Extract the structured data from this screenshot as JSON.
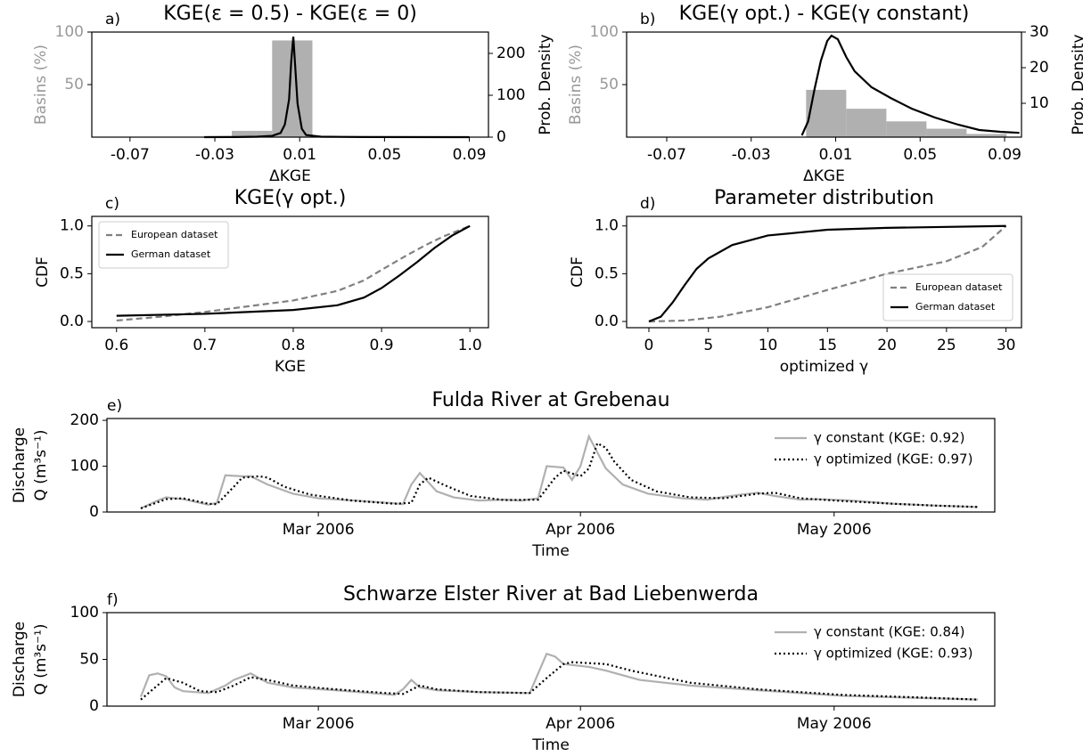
{
  "chart_data": [
    {
      "type": "histogram",
      "panel_label": "a)",
      "title": "KGE(ε = 0.5) - KGE(ε = 0)",
      "xlabel": "ΔKGE",
      "ylabel": "Basins (%)",
      "y2label": "Prob. Density",
      "bins": [
        -0.022,
        -0.003,
        0.016
      ],
      "values": [
        6,
        92
      ],
      "color": "#b0b0b0",
      "label_color": "#999999",
      "density_x": [
        -0.035,
        -0.02,
        -0.01,
        -0.003,
        0.001,
        0.003,
        0.005,
        0.006,
        0.007,
        0.008,
        0.009,
        0.011,
        0.013,
        0.02,
        0.04,
        0.09
      ],
      "density": [
        0,
        0.3,
        1,
        3,
        10,
        30,
        90,
        180,
        240,
        160,
        80,
        20,
        5,
        1,
        0.2,
        0
      ],
      "density_color": "#000000",
      "xlim": [
        -0.088,
        0.099
      ],
      "xticks": [
        -0.07,
        -0.03,
        0.01,
        0.05,
        0.09
      ],
      "ylim": [
        0,
        100
      ],
      "yticks": [
        50,
        100
      ],
      "y2lim": [
        0,
        251
      ],
      "y2ticks": [
        0,
        100,
        200
      ]
    },
    {
      "type": "histogram",
      "panel_label": "b)",
      "title": "KGE(γ opt.) - KGE(γ constant)",
      "xlabel": "ΔKGE",
      "ylabel": "Basins (%)",
      "y2label": "Prob. Density",
      "bins": [
        -0.004,
        0.015,
        0.034,
        0.053,
        0.072,
        0.091
      ],
      "values": [
        45,
        27,
        15,
        8,
        3
      ],
      "color": "#b0b0b0",
      "label_color": "#999999",
      "density_x": [
        -0.006,
        -0.003,
        0.0,
        0.003,
        0.006,
        0.008,
        0.011,
        0.015,
        0.019,
        0.027,
        0.036,
        0.046,
        0.057,
        0.068,
        0.078,
        0.088,
        0.097
      ],
      "density": [
        1,
        5,
        14,
        22,
        27.5,
        29,
        28,
        23,
        19,
        14.5,
        11.5,
        8.5,
        6,
        4,
        2.5,
        2,
        1.7
      ],
      "density_color": "#000000",
      "xlim": [
        -0.089,
        0.098
      ],
      "xticks": [
        -0.07,
        -0.03,
        0.01,
        0.05,
        0.09
      ],
      "ylim": [
        0,
        100
      ],
      "yticks": [
        50,
        100
      ],
      "y2lim": [
        0.5,
        30
      ],
      "y2ticks": [
        10,
        20,
        30
      ]
    },
    {
      "type": "line",
      "panel_label": "c)",
      "title": "KGE(γ opt.)",
      "xlabel": "KGE",
      "ylabel": [
        "CDF"
      ],
      "legend": "upper left",
      "legend_frame": true,
      "xlim": [
        0.572,
        1.021
      ],
      "xticks": [
        0.6,
        0.7,
        0.8,
        0.9,
        {
          "value": 1.0,
          "label": "1.0"
        }
      ],
      "ylim": [
        -0.065,
        1.1
      ],
      "yticks": [
        {
          "value": 0,
          "label": "0.0"
        },
        0.5,
        {
          "value": 1.0,
          "label": "1.0"
        }
      ],
      "series": [
        {
          "name": "European dataset",
          "color": "#808080",
          "linestyle": "dashed",
          "x": [
            0.6,
            0.65,
            0.7,
            0.75,
            0.8,
            0.85,
            0.88,
            0.9,
            0.93,
            0.95,
            0.97,
            1.0
          ],
          "values": [
            0.01,
            0.05,
            0.1,
            0.16,
            0.22,
            0.32,
            0.43,
            0.54,
            0.7,
            0.8,
            0.89,
            1.0
          ]
        },
        {
          "name": "German dataset",
          "color": "#000000",
          "linestyle": "solid",
          "x": [
            0.6,
            0.7,
            0.8,
            0.85,
            0.88,
            0.9,
            0.92,
            0.94,
            0.96,
            0.98,
            1.0
          ],
          "values": [
            0.06,
            0.08,
            0.12,
            0.17,
            0.25,
            0.35,
            0.48,
            0.62,
            0.77,
            0.9,
            1.0
          ]
        }
      ]
    },
    {
      "type": "line",
      "panel_label": "d)",
      "title": "Parameter distribution",
      "xlabel": "optimized γ",
      "ylabel": [
        "CDF"
      ],
      "legend": "lower right",
      "legend_frame": true,
      "xlim": [
        -1.87,
        31.3
      ],
      "xticks": [
        0,
        5,
        10,
        15,
        20,
        25,
        30
      ],
      "ylim": [
        -0.065,
        1.1
      ],
      "yticks": [
        {
          "value": 0,
          "label": "0.0"
        },
        0.5,
        {
          "value": 1.0,
          "label": "1.0"
        }
      ],
      "series": [
        {
          "name": "European dataset",
          "color": "#808080",
          "linestyle": "dashed",
          "x": [
            0,
            3,
            6,
            10,
            15,
            20,
            25,
            28,
            30
          ],
          "values": [
            0,
            0.01,
            0.05,
            0.15,
            0.33,
            0.5,
            0.63,
            0.78,
            1.0
          ]
        },
        {
          "name": "German dataset",
          "color": "#000000",
          "linestyle": "solid",
          "x": [
            0,
            1,
            2,
            3,
            4,
            5,
            7,
            10,
            15,
            20,
            30
          ],
          "values": [
            0,
            0.05,
            0.2,
            0.38,
            0.55,
            0.66,
            0.8,
            0.9,
            0.96,
            0.98,
            1.0
          ]
        }
      ]
    },
    {
      "type": "line",
      "panel_label": "e)",
      "title": "Fulda River at Grebenau",
      "xlabel": "Time",
      "ylabel": [
        "Discharge",
        "Q (m³s⁻¹)"
      ],
      "legend": "upper right",
      "legend_frame": false,
      "xlim": [
        3,
        108
      ],
      "xticks": [
        {
          "value": 28,
          "label": "Mar 2006"
        },
        {
          "value": 59,
          "label": "Apr 2006"
        },
        {
          "value": 89,
          "label": "May 2006"
        }
      ],
      "ylim": [
        0,
        204
      ],
      "yticks": [
        0,
        100,
        200
      ],
      "series": [
        {
          "name": "γ constant (KGE: 0.92)",
          "color": "#b0b0b0",
          "linestyle": "solid",
          "x": [
            7,
            9,
            10,
            12,
            15,
            16,
            17,
            19,
            20,
            22,
            25,
            28,
            33,
            37,
            38,
            39,
            40,
            41,
            42,
            44,
            47,
            50,
            52,
            54,
            55,
            57,
            58,
            59,
            60,
            62,
            64,
            67,
            71,
            74,
            76,
            78,
            80,
            82,
            85,
            87,
            91,
            96,
            101,
            106
          ],
          "values": [
            8,
            25,
            32,
            28,
            16,
            20,
            80,
            78,
            78,
            60,
            40,
            30,
            24,
            19,
            17,
            60,
            85,
            65,
            45,
            32,
            25,
            27,
            25,
            30,
            100,
            97,
            70,
            100,
            165,
            95,
            60,
            40,
            30,
            27,
            33,
            38,
            42,
            35,
            27,
            28,
            25,
            18,
            14,
            11
          ]
        },
        {
          "name": "γ optimized (KGE: 0.97)",
          "color": "#000000",
          "linestyle": "dotted",
          "x": [
            7,
            10,
            12,
            15,
            16,
            18,
            19,
            21,
            22,
            24,
            27,
            32,
            37,
            39,
            40,
            41,
            43,
            46,
            50,
            54,
            56,
            57,
            59,
            60,
            61,
            62,
            63,
            65,
            68,
            72,
            76,
            80,
            82,
            85,
            90,
            96,
            101,
            106
          ],
          "values": [
            8,
            28,
            30,
            18,
            17,
            55,
            75,
            78,
            75,
            55,
            38,
            25,
            18,
            20,
            60,
            75,
            58,
            35,
            26,
            27,
            75,
            90,
            78,
            95,
            150,
            140,
            110,
            70,
            45,
            32,
            30,
            40,
            42,
            30,
            24,
            18,
            14,
            11
          ]
        }
      ]
    },
    {
      "type": "line",
      "panel_label": "f)",
      "title": "Schwarze Elster River at Bad Liebenwerda",
      "xlabel": "Time",
      "ylabel": [
        "Discharge",
        "Q (m³s⁻¹)"
      ],
      "legend": "upper right",
      "legend_frame": false,
      "xlim": [
        3,
        108
      ],
      "xticks": [
        {
          "value": 28,
          "label": "Mar 2006"
        },
        {
          "value": 59,
          "label": "Apr 2006"
        },
        {
          "value": 89,
          "label": "May 2006"
        }
      ],
      "ylim": [
        0,
        100
      ],
      "yticks": [
        0,
        50,
        100
      ],
      "series": [
        {
          "name": "γ constant (KGE: 0.84)",
          "color": "#b0b0b0",
          "linestyle": "solid",
          "x": [
            7,
            8,
            9,
            10,
            11,
            12,
            15,
            17,
            18,
            20,
            22,
            25,
            30,
            37,
            38,
            39,
            40,
            42,
            47,
            53,
            55,
            56,
            57,
            60,
            62,
            66,
            72,
            80,
            90,
            106
          ],
          "values": [
            10,
            33,
            35,
            32,
            20,
            16,
            14,
            22,
            28,
            35,
            25,
            20,
            17,
            12,
            18,
            28,
            20,
            17,
            15,
            14,
            56,
            53,
            45,
            42,
            38,
            28,
            22,
            17,
            11,
            7
          ]
        },
        {
          "name": "γ optimized (KGE: 0.93)",
          "color": "#000000",
          "linestyle": "dotted",
          "x": [
            7,
            10,
            12,
            14,
            16,
            18,
            20,
            22,
            25,
            30,
            36,
            38,
            40,
            42,
            47,
            53,
            55,
            57,
            58,
            62,
            65,
            72,
            80,
            90,
            100,
            106
          ],
          "values": [
            7,
            30,
            25,
            16,
            15,
            22,
            31,
            28,
            22,
            18,
            14,
            13,
            22,
            18,
            15,
            14,
            30,
            45,
            47,
            45,
            38,
            25,
            18,
            12,
            9,
            7
          ]
        }
      ]
    }
  ]
}
